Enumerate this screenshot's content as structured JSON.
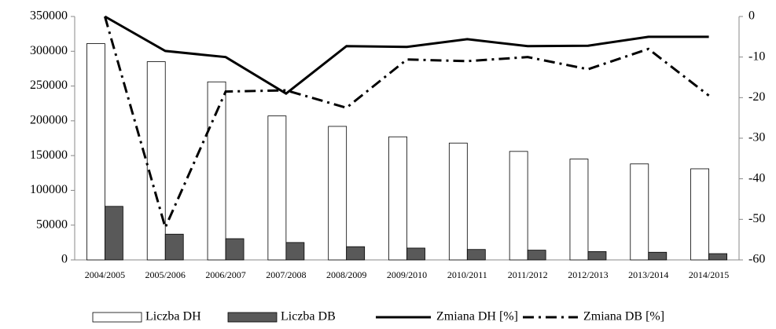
{
  "chart_data": {
    "type": "bar-line",
    "categories": [
      "2004/2005",
      "2005/2006",
      "2006/2007",
      "2007/2008",
      "2008/2009",
      "2009/2010",
      "2010/2011",
      "2011/2012",
      "2012/2013",
      "2013/2014",
      "2014/2015"
    ],
    "series": [
      {
        "name": "Liczba DH",
        "type": "bar",
        "color": "#ffffff",
        "axis": "y",
        "values": [
          311000,
          285000,
          256000,
          207000,
          192000,
          177000,
          168000,
          156000,
          145000,
          138000,
          131000
        ]
      },
      {
        "name": "Liczba DB",
        "type": "bar",
        "color": "#595959",
        "axis": "y",
        "values": [
          77000,
          37000,
          30500,
          25000,
          19000,
          17000,
          15000,
          14000,
          12000,
          11000,
          9000
        ]
      },
      {
        "name": "Zmiana DH [%]",
        "type": "line",
        "style": "solid",
        "color": "#000000",
        "axis": "y2",
        "values": [
          0,
          -8.5,
          -10,
          -19,
          -7.3,
          -7.5,
          -5.6,
          -7.3,
          -7.2,
          -5,
          -5
        ]
      },
      {
        "name": "Zmiana DB [%]",
        "type": "line",
        "style": "dash-dot",
        "color": "#000000",
        "axis": "y2",
        "values": [
          0,
          -52,
          -18.5,
          -18.2,
          -22.5,
          -10.6,
          -11,
          -10,
          -13,
          -8,
          -19.5
        ]
      }
    ],
    "ylim": [
      0,
      350000
    ],
    "yticks": [
      0,
      50000,
      100000,
      150000,
      200000,
      250000,
      300000,
      350000
    ],
    "y2lim": [
      -60,
      0
    ],
    "y2ticks": [
      -60,
      -50,
      -40,
      -30,
      -20,
      -10,
      0
    ],
    "grid": false,
    "legend": "bottom"
  }
}
